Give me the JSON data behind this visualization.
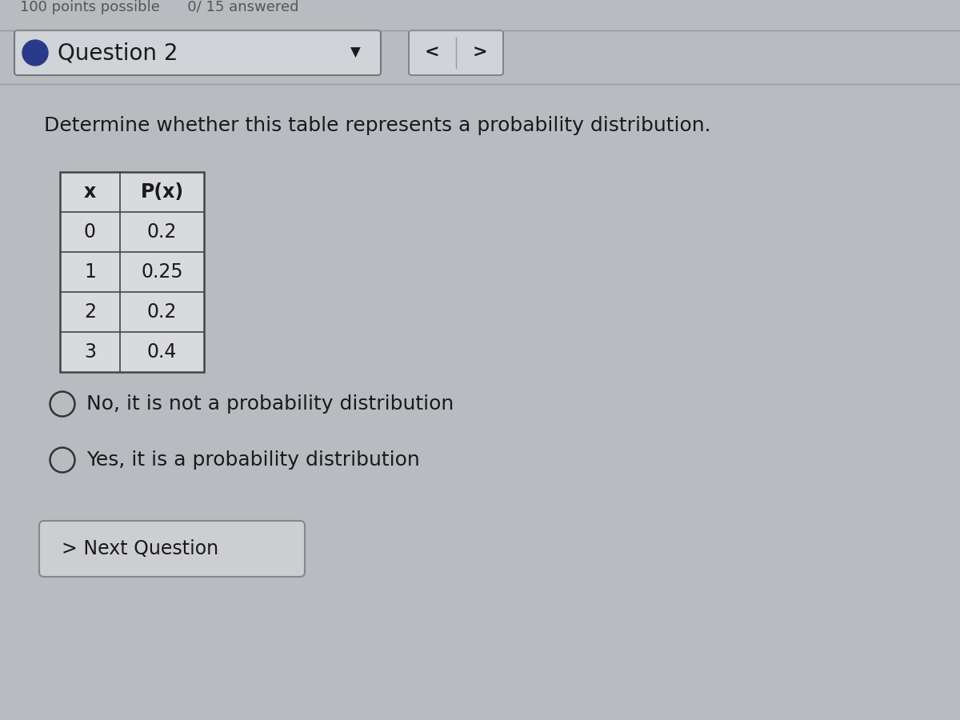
{
  "background_color": "#b8bcc0",
  "question_number": "Question 2",
  "question_text": "Determine whether this table represents a probability distribution.",
  "table_headers": [
    "x",
    "P(x)"
  ],
  "table_data": [
    [
      "0",
      "0.2"
    ],
    [
      "1",
      "0.25"
    ],
    [
      "2",
      "0.2"
    ],
    [
      "3",
      "0.4"
    ]
  ],
  "options": [
    "No, it is not a probability distribution",
    "Yes, it is a probability distribution"
  ],
  "next_button_text": "> Next Question",
  "top_text": "100 points possible      0/ 15 answered",
  "text_color": "#1a1a1a",
  "table_bg": "#d8dade",
  "table_border_color": "#444444",
  "button_bg": "#ccced2",
  "button_border": "#888888",
  "header_box_bg": "#d0d3d7",
  "header_box_border": "#777777",
  "nav_box_bg": "#d0d3d7",
  "bullet_color": "#2a3a8a",
  "divider_color": "#999999",
  "top_text_color": "#555555",
  "font_size_top": 13,
  "font_size_question_label": 20,
  "font_size_question_text": 18,
  "font_size_table_header": 17,
  "font_size_table_data": 17,
  "font_size_options": 18,
  "font_size_button": 17
}
